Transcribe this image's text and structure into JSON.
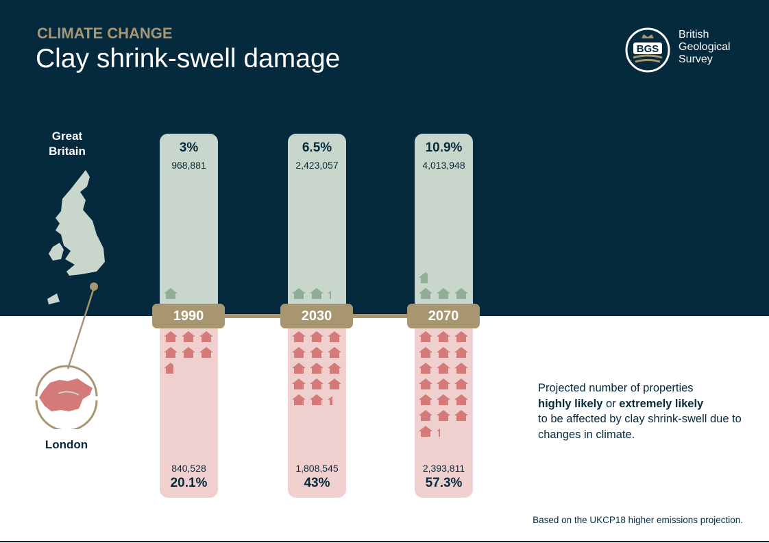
{
  "header": {
    "kicker": "CLIMATE CHANGE",
    "title": "Clay shrink-swell damage"
  },
  "logo": {
    "mark": "BGS",
    "line1": "British",
    "line2": "Geological",
    "line3": "Survey"
  },
  "regions": {
    "gb": "Great Britain",
    "london": "London"
  },
  "colors": {
    "background_dark": "#062a3d",
    "accent_gold": "#a89670",
    "gb_house": "#8fae95",
    "london_house": "#d47a78"
  },
  "chart_data": {
    "type": "pictograph",
    "categories": [
      "1990",
      "2030",
      "2070"
    ],
    "series": [
      {
        "name": "Great Britain",
        "percent_labels": [
          "3%",
          "6.5%",
          "10.9%"
        ],
        "percent": [
          3,
          6.5,
          10.9
        ],
        "count_labels": [
          "968,881",
          "2,423,057",
          "4,013,948"
        ],
        "counts": [
          968881,
          2423057,
          4013948
        ]
      },
      {
        "name": "London",
        "percent_labels": [
          "20.1%",
          "43%",
          "57.3%"
        ],
        "percent": [
          20.1,
          43,
          57.3
        ],
        "count_labels": [
          "840,528",
          "1,808,545",
          "2,393,811"
        ],
        "counts": [
          840528,
          1808545,
          2393811
        ]
      }
    ]
  },
  "note": {
    "pre": "Projected number of properties",
    "b1": "highly likely",
    "mid": " or ",
    "b2": "extremely likely",
    "post": "to be affected by clay shrink-swell due to changes in climate."
  },
  "source": "Based on the UKCP18 higher emissions projection."
}
